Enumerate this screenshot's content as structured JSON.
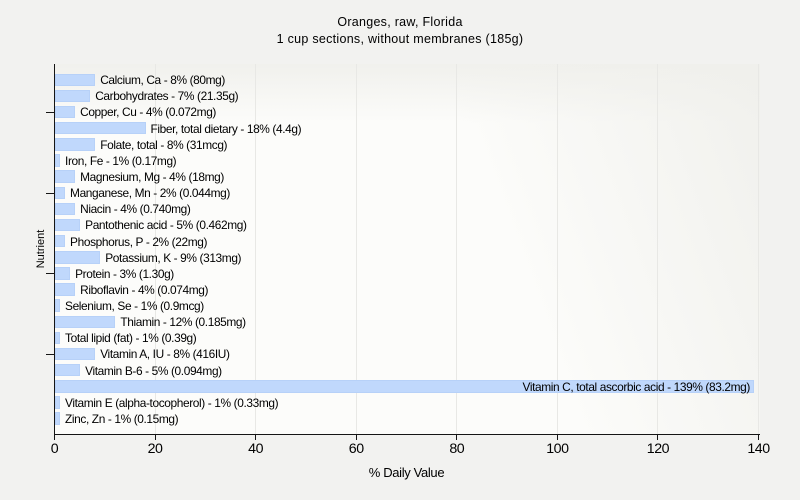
{
  "chart_data": {
    "type": "bar",
    "orientation": "horizontal",
    "title": "Oranges, raw, Florida",
    "subtitle": "1 cup sections, without membranes (185g)",
    "xlabel": "% Daily Value",
    "ylabel": "Nutrient",
    "xlim": [
      0,
      140
    ],
    "xticks": [
      0,
      20,
      40,
      60,
      80,
      100,
      120,
      140
    ],
    "grid": "vertical gridlines at x major ticks",
    "legend": "none",
    "ytick_marks_at_rows": [
      3,
      8,
      13,
      18
    ],
    "categories": [
      "Calcium, Ca",
      "Carbohydrates",
      "Copper, Cu",
      "Fiber, total dietary",
      "Folate, total",
      "Iron, Fe",
      "Magnesium, Mg",
      "Manganese, Mn",
      "Niacin",
      "Pantothenic acid",
      "Phosphorus, P",
      "Potassium, K",
      "Protein",
      "Riboflavin",
      "Selenium, Se",
      "Thiamin",
      "Total lipid (fat)",
      "Vitamin A, IU",
      "Vitamin B-6",
      "Vitamin C, total ascorbic acid",
      "Vitamin E (alpha-tocopherol)",
      "Zinc, Zn"
    ],
    "values": [
      8,
      7,
      4,
      18,
      8,
      1,
      4,
      2,
      4,
      5,
      2,
      9,
      3,
      4,
      1,
      12,
      1,
      8,
      5,
      139,
      1,
      1
    ],
    "amounts": [
      "80mg",
      "21.35g",
      "0.072mg",
      "4.4g",
      "31mcg",
      "0.17mg",
      "18mg",
      "0.044mg",
      "0.740mg",
      "0.462mg",
      "22mg",
      "313mg",
      "1.30g",
      "0.074mg",
      "0.9mcg",
      "0.185mg",
      "0.39g",
      "416IU",
      "0.094mg",
      "83.2mg",
      "0.33mg",
      "0.15mg"
    ],
    "label_format": "{category} - {value}% ({amount})",
    "colors": {
      "page_background": "#f2f2f0",
      "plot_background": "#fcfcfa",
      "bar_fill": "#c0d8fc",
      "bar_border": "#94b5e9",
      "gridline": "#e8e8e5",
      "axis_line": "#151515",
      "text": "#000000"
    }
  }
}
